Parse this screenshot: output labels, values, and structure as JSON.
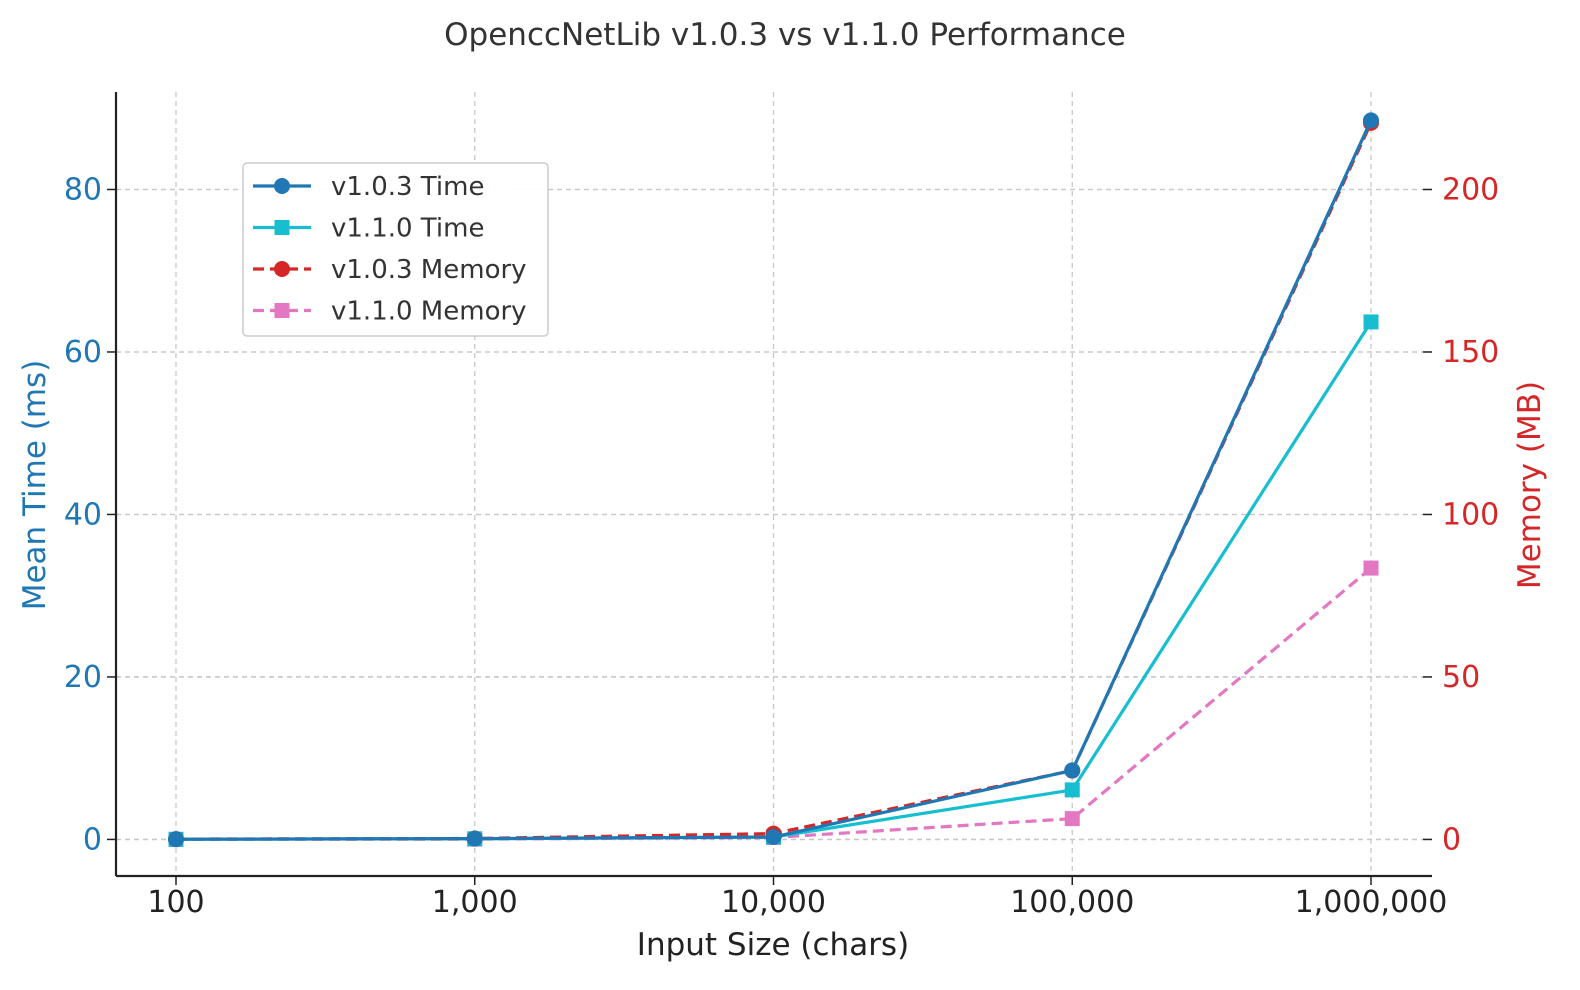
{
  "chart_data": {
    "type": "line",
    "title": "OpenccNetLib v1.0.3 vs v1.1.0 Performance",
    "xlabel": "Input Size (chars)",
    "ylabel_left": "Mean Time (ms)",
    "ylabel_right": "Memory (MB)",
    "x_scale": "log",
    "x": [
      100,
      1000,
      10000,
      100000,
      1000000
    ],
    "x_tick_labels": [
      "100",
      "1,000",
      "10,000",
      "100,000",
      "1,000,000"
    ],
    "ylim_left": [
      -4.5,
      92
    ],
    "ylim_right": [
      -11.25,
      230
    ],
    "y_ticks_left": [
      0,
      20,
      40,
      60,
      80
    ],
    "y_ticks_right": [
      0,
      50,
      100,
      150,
      200
    ],
    "grid": true,
    "legend_position": "upper-left",
    "series": [
      {
        "name": "v1.0.3 Time",
        "axis": "left",
        "color": "#1f77b4",
        "style": "solid",
        "marker": "circle",
        "values": [
          0.03,
          0.1,
          0.3,
          8.5,
          88.5
        ]
      },
      {
        "name": "v1.1.0 Time",
        "axis": "left",
        "color": "#17becf",
        "style": "solid",
        "marker": "square",
        "values": [
          0.02,
          0.08,
          0.3,
          6.1,
          63.7
        ]
      },
      {
        "name": "v1.0.3 Memory",
        "axis": "right",
        "color": "#d62728",
        "style": "dashed",
        "marker": "circle",
        "values": [
          0.1,
          0.3,
          1.8,
          21.2,
          220.5
        ]
      },
      {
        "name": "v1.1.0 Memory",
        "axis": "right",
        "color": "#e377c2",
        "style": "dashed",
        "marker": "square",
        "values": [
          0.0,
          0.1,
          0.6,
          6.4,
          83.5
        ]
      }
    ],
    "colors": {
      "left_axis": "#1f77b4",
      "right_axis": "#d62728",
      "bottom_axis": "#222222"
    }
  }
}
